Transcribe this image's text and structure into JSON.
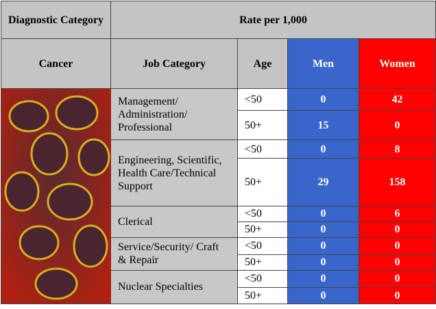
{
  "header": {
    "diagnostic": "Diagnostic Category",
    "rate": "Rate per 1,000",
    "cancer": "Cancer",
    "job": "Job Category",
    "age": "Age",
    "men": "Men",
    "women": "Women"
  },
  "rows": [
    {
      "job": "Management/ Administration/ Professional",
      "ages": [
        {
          "age": "<50",
          "men": 0,
          "women": 42
        },
        {
          "age": "50+",
          "men": 15,
          "women": 0
        }
      ]
    },
    {
      "job": "Engineering, Scientific, Health Care/Technical Support",
      "ages": [
        {
          "age": "<50",
          "men": 0,
          "women": 8
        },
        {
          "age": "50+",
          "men": 29,
          "women": 158
        }
      ]
    },
    {
      "job": "Clerical",
      "ages": [
        {
          "age": "<50",
          "men": 0,
          "women": 6
        },
        {
          "age": "50+",
          "men": 0,
          "women": 0
        }
      ]
    },
    {
      "job": "Service/Security/ Craft & Repair",
      "ages": [
        {
          "age": "<50",
          "men": 0,
          "women": 0
        },
        {
          "age": "50+",
          "men": 0,
          "women": 0
        }
      ]
    },
    {
      "job": "Nuclear Specialties",
      "ages": [
        {
          "age": "<50",
          "men": 0,
          "women": 0
        },
        {
          "age": "50+",
          "men": 0,
          "women": 0
        }
      ]
    }
  ]
}
